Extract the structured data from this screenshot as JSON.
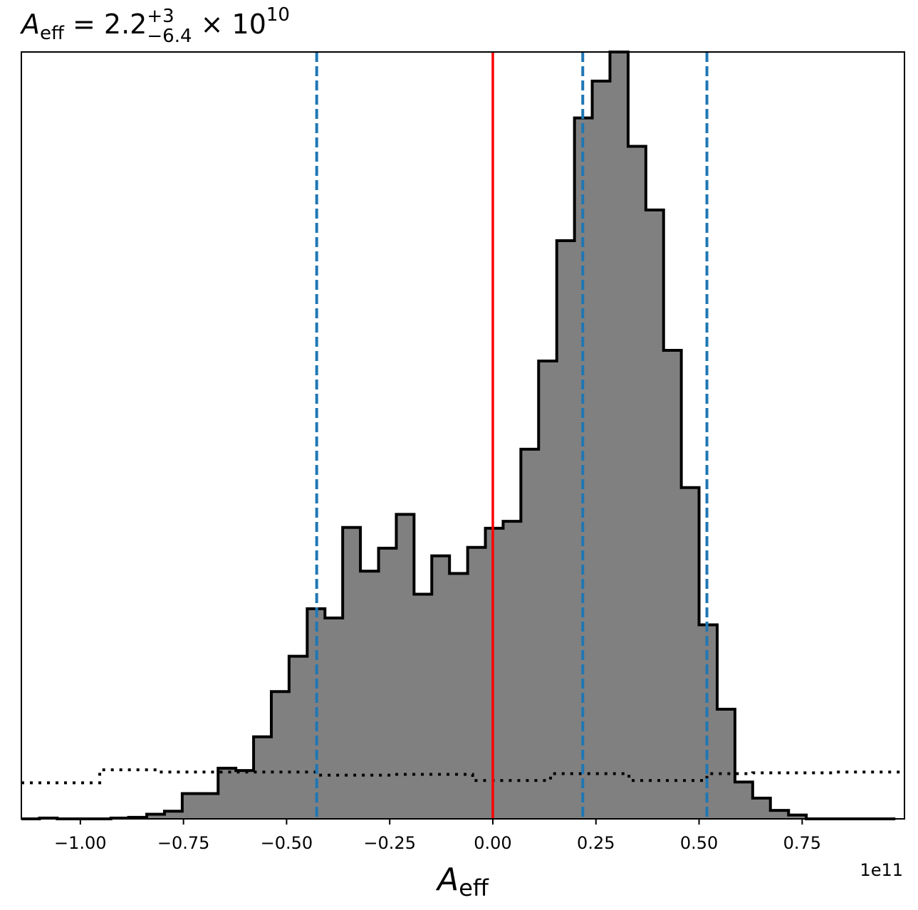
{
  "chart_data": {
    "type": "bar",
    "title": {
      "symbol": "A",
      "symbol_sub": "eff",
      "eq": " = 2.2",
      "sup": "+3",
      "sub": "−6.4",
      "times": " × 10",
      "exp": "10"
    },
    "xlabel": {
      "symbol": "A",
      "sub": "eff"
    },
    "x_offset_text": "1e11",
    "x_scale": 100000000000.0,
    "xlim": [
      -1.143,
      0.998
    ],
    "ylim": [
      0,
      1.0
    ],
    "xticks": [
      -1.0,
      -0.75,
      -0.5,
      -0.25,
      0.0,
      0.25,
      0.5,
      0.75
    ],
    "xtick_labels": [
      "−1.00",
      "−0.75",
      "−0.50",
      "−0.25",
      "0.00",
      "0.25",
      "0.50",
      "0.75"
    ],
    "y_axis_ticks": false,
    "grid": false,
    "histogram": {
      "fill_color": "#808080",
      "edge_color": "#000000",
      "bin_edges": [
        -1.143,
        -1.099,
        -1.056,
        -1.012,
        -0.969,
        -0.926,
        -0.883,
        -0.839,
        -0.796,
        -0.753,
        -0.71,
        -0.666,
        -0.623,
        -0.58,
        -0.537,
        -0.494,
        -0.45,
        -0.407,
        -0.364,
        -0.321,
        -0.277,
        -0.234,
        -0.191,
        -0.148,
        -0.105,
        -0.061,
        -0.018,
        0.025,
        0.068,
        0.111,
        0.155,
        0.198,
        0.241,
        0.284,
        0.328,
        0.371,
        0.414,
        0.457,
        0.5,
        0.544,
        0.587,
        0.63,
        0.673,
        0.717,
        0.76,
        0.803,
        0.846,
        0.889,
        0.933,
        0.976
      ],
      "values": [
        0,
        0.001,
        0,
        0,
        0,
        0.001,
        0.002,
        0.006,
        0.01,
        0.033,
        0.033,
        0.066,
        0.063,
        0.107,
        0.166,
        0.212,
        0.274,
        0.262,
        0.38,
        0.323,
        0.353,
        0.397,
        0.293,
        0.343,
        0.32,
        0.354,
        0.379,
        0.388,
        0.482,
        0.597,
        0.754,
        0.914,
        0.962,
        1.0,
        0.877,
        0.794,
        0.611,
        0.432,
        0.253,
        0.143,
        0.048,
        0.027,
        0.011,
        0.005,
        0,
        0,
        0,
        0,
        0
      ]
    },
    "prior_line": {
      "style": "dotted",
      "color": "#000000",
      "bin_edges": [
        -1.143,
        -0.953,
        -0.809,
        -0.62,
        -0.427,
        -0.238,
        -0.049,
        0.14,
        0.33,
        0.519,
        0.63,
        0.829,
        0.998
      ],
      "values": [
        0.047,
        0.064,
        0.061,
        0.061,
        0.057,
        0.058,
        0.05,
        0.059,
        0.05,
        0.059,
        0.06,
        0.061
      ]
    },
    "vlines": [
      {
        "x": -0.427,
        "style": "dashed",
        "color": "#1f77b4"
      },
      {
        "x": 0.218,
        "style": "dashed",
        "color": "#1f77b4"
      },
      {
        "x": 0.519,
        "style": "dashed",
        "color": "#1f77b4"
      },
      {
        "x": 0.0,
        "style": "solid",
        "color": "#ff0000"
      }
    ]
  }
}
